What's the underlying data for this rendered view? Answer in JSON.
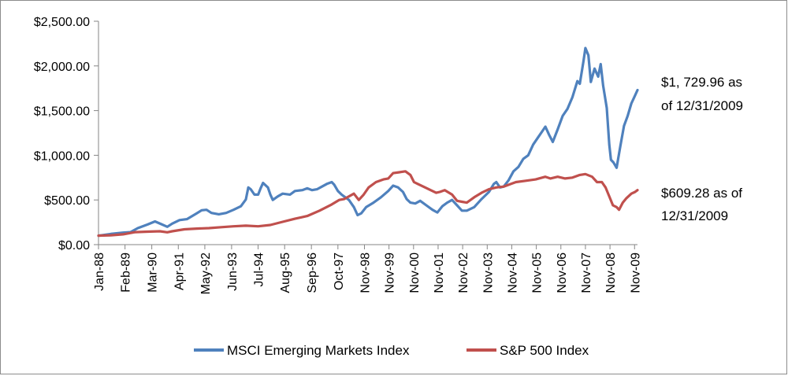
{
  "chart_data": {
    "type": "line",
    "title": "",
    "xlabel": "",
    "ylabel": "",
    "ylim": [
      0,
      2500
    ],
    "y_ticks": [
      0,
      500,
      1000,
      1500,
      2000,
      2500
    ],
    "y_tick_labels": [
      "$0.00",
      "$500.00",
      "$1,000.00",
      "$1,500.00",
      "$2,000.00",
      "$2,500.00"
    ],
    "x_ticks": [
      1988.0,
      1989.08,
      1990.17,
      1991.25,
      1992.33,
      1993.42,
      1994.5,
      1995.58,
      1996.67,
      1997.75,
      1998.83,
      1999.83,
      2000.83,
      2001.83,
      2002.83,
      2003.83,
      2004.83,
      2005.83,
      2006.83,
      2007.83,
      2008.83,
      2009.83
    ],
    "x_tick_labels": [
      "Jan-88",
      "Feb-89",
      "Mar-90",
      "Apr-91",
      "May-92",
      "Jun-93",
      "Jul-94",
      "Aug-95",
      "Sep-96",
      "Oct-97",
      "Nov-98",
      "Nov-99",
      "Nov-00",
      "Nov-01",
      "Nov-02",
      "Nov-03",
      "Nov-04",
      "Nov-05",
      "Nov-06",
      "Nov-07",
      "Nov-08",
      "Nov-09"
    ],
    "xlim": [
      1988.0,
      2009.95
    ],
    "legend_position": "bottom",
    "series": [
      {
        "name": "MSCI Emerging Markets Index",
        "color": "#4f81bd",
        "points": [
          [
            1988.0,
            100
          ],
          [
            1988.5,
            120
          ],
          [
            1989.0,
            135
          ],
          [
            1989.3,
            140
          ],
          [
            1989.6,
            185
          ],
          [
            1990.0,
            225
          ],
          [
            1990.3,
            260
          ],
          [
            1990.55,
            230
          ],
          [
            1990.8,
            200
          ],
          [
            1991.0,
            235
          ],
          [
            1991.3,
            275
          ],
          [
            1991.6,
            285
          ],
          [
            1992.0,
            350
          ],
          [
            1992.2,
            385
          ],
          [
            1992.4,
            390
          ],
          [
            1992.6,
            355
          ],
          [
            1992.9,
            340
          ],
          [
            1993.2,
            355
          ],
          [
            1993.5,
            390
          ],
          [
            1993.8,
            430
          ],
          [
            1994.0,
            505
          ],
          [
            1994.1,
            640
          ],
          [
            1994.2,
            620
          ],
          [
            1994.35,
            560
          ],
          [
            1994.5,
            560
          ],
          [
            1994.6,
            630
          ],
          [
            1994.7,
            690
          ],
          [
            1994.9,
            640
          ],
          [
            1995.0,
            560
          ],
          [
            1995.1,
            500
          ],
          [
            1995.3,
            540
          ],
          [
            1995.5,
            570
          ],
          [
            1995.8,
            560
          ],
          [
            1996.0,
            600
          ],
          [
            1996.3,
            610
          ],
          [
            1996.5,
            630
          ],
          [
            1996.7,
            610
          ],
          [
            1996.9,
            620
          ],
          [
            1997.1,
            650
          ],
          [
            1997.3,
            680
          ],
          [
            1997.5,
            700
          ],
          [
            1997.6,
            670
          ],
          [
            1997.75,
            600
          ],
          [
            1997.9,
            560
          ],
          [
            1998.0,
            540
          ],
          [
            1998.2,
            500
          ],
          [
            1998.4,
            420
          ],
          [
            1998.55,
            330
          ],
          [
            1998.7,
            350
          ],
          [
            1998.9,
            420
          ],
          [
            1999.2,
            470
          ],
          [
            1999.5,
            530
          ],
          [
            1999.8,
            600
          ],
          [
            2000.0,
            660
          ],
          [
            2000.2,
            640
          ],
          [
            2000.4,
            590
          ],
          [
            2000.55,
            510
          ],
          [
            2000.7,
            470
          ],
          [
            2000.9,
            460
          ],
          [
            2001.1,
            490
          ],
          [
            2001.35,
            440
          ],
          [
            2001.6,
            390
          ],
          [
            2001.8,
            360
          ],
          [
            2002.0,
            430
          ],
          [
            2002.2,
            470
          ],
          [
            2002.4,
            500
          ],
          [
            2002.6,
            440
          ],
          [
            2002.8,
            380
          ],
          [
            2003.0,
            380
          ],
          [
            2003.3,
            420
          ],
          [
            2003.6,
            510
          ],
          [
            2003.9,
            590
          ],
          [
            2004.1,
            680
          ],
          [
            2004.2,
            700
          ],
          [
            2004.35,
            640
          ],
          [
            2004.5,
            650
          ],
          [
            2004.7,
            720
          ],
          [
            2004.9,
            820
          ],
          [
            2005.1,
            870
          ],
          [
            2005.3,
            960
          ],
          [
            2005.5,
            1000
          ],
          [
            2005.7,
            1120
          ],
          [
            2005.9,
            1200
          ],
          [
            2006.1,
            1280
          ],
          [
            2006.2,
            1320
          ],
          [
            2006.35,
            1230
          ],
          [
            2006.5,
            1150
          ],
          [
            2006.7,
            1290
          ],
          [
            2006.9,
            1440
          ],
          [
            2007.1,
            1520
          ],
          [
            2007.3,
            1650
          ],
          [
            2007.5,
            1830
          ],
          [
            2007.6,
            1800
          ],
          [
            2007.75,
            2050
          ],
          [
            2007.83,
            2200
          ],
          [
            2007.95,
            2120
          ],
          [
            2008.05,
            1820
          ],
          [
            2008.2,
            1970
          ],
          [
            2008.35,
            1880
          ],
          [
            2008.45,
            2020
          ],
          [
            2008.55,
            1780
          ],
          [
            2008.7,
            1530
          ],
          [
            2008.8,
            1120
          ],
          [
            2008.87,
            950
          ],
          [
            2008.97,
            920
          ],
          [
            2009.1,
            860
          ],
          [
            2009.25,
            1100
          ],
          [
            2009.4,
            1330
          ],
          [
            2009.55,
            1440
          ],
          [
            2009.7,
            1580
          ],
          [
            2009.82,
            1650
          ],
          [
            2009.95,
            1730
          ]
        ]
      },
      {
        "name": "S&P 500 Index",
        "color": "#c0504d",
        "points": [
          [
            1988.0,
            100
          ],
          [
            1988.5,
            105
          ],
          [
            1989.0,
            115
          ],
          [
            1989.5,
            140
          ],
          [
            1990.0,
            145
          ],
          [
            1990.5,
            150
          ],
          [
            1990.8,
            138
          ],
          [
            1991.0,
            150
          ],
          [
            1991.5,
            172
          ],
          [
            1992.0,
            180
          ],
          [
            1992.5,
            185
          ],
          [
            1993.0,
            195
          ],
          [
            1993.5,
            205
          ],
          [
            1994.0,
            212
          ],
          [
            1994.5,
            205
          ],
          [
            1995.0,
            220
          ],
          [
            1995.5,
            255
          ],
          [
            1996.0,
            290
          ],
          [
            1996.5,
            320
          ],
          [
            1997.0,
            380
          ],
          [
            1997.5,
            450
          ],
          [
            1997.8,
            500
          ],
          [
            1998.0,
            510
          ],
          [
            1998.4,
            570
          ],
          [
            1998.6,
            500
          ],
          [
            1998.8,
            560
          ],
          [
            1999.0,
            640
          ],
          [
            1999.3,
            700
          ],
          [
            1999.6,
            730
          ],
          [
            1999.8,
            740
          ],
          [
            2000.0,
            800
          ],
          [
            2000.25,
            810
          ],
          [
            2000.5,
            820
          ],
          [
            2000.7,
            780
          ],
          [
            2000.85,
            700
          ],
          [
            2001.0,
            680
          ],
          [
            2001.3,
            640
          ],
          [
            2001.6,
            600
          ],
          [
            2001.75,
            580
          ],
          [
            2001.9,
            590
          ],
          [
            2002.1,
            610
          ],
          [
            2002.4,
            560
          ],
          [
            2002.6,
            490
          ],
          [
            2002.8,
            480
          ],
          [
            2003.0,
            470
          ],
          [
            2003.3,
            530
          ],
          [
            2003.6,
            580
          ],
          [
            2003.9,
            620
          ],
          [
            2004.2,
            640
          ],
          [
            2004.5,
            650
          ],
          [
            2004.8,
            680
          ],
          [
            2005.0,
            700
          ],
          [
            2005.4,
            715
          ],
          [
            2005.8,
            730
          ],
          [
            2006.2,
            760
          ],
          [
            2006.4,
            740
          ],
          [
            2006.7,
            760
          ],
          [
            2007.0,
            740
          ],
          [
            2007.3,
            750
          ],
          [
            2007.6,
            780
          ],
          [
            2007.83,
            790
          ],
          [
            2008.1,
            760
          ],
          [
            2008.3,
            700
          ],
          [
            2008.5,
            700
          ],
          [
            2008.65,
            640
          ],
          [
            2008.8,
            540
          ],
          [
            2008.95,
            440
          ],
          [
            2009.1,
            420
          ],
          [
            2009.2,
            390
          ],
          [
            2009.35,
            470
          ],
          [
            2009.5,
            520
          ],
          [
            2009.7,
            570
          ],
          [
            2009.85,
            590
          ],
          [
            2009.95,
            610
          ]
        ]
      }
    ],
    "annotations": [
      {
        "series": "MSCI Emerging Markets Index",
        "lines": [
          "$1, 729.96 as",
          "of 12/31/2009"
        ]
      },
      {
        "series": "S&P 500 Index",
        "lines": [
          "$609.28 as of",
          "12/31/2009"
        ]
      }
    ]
  }
}
